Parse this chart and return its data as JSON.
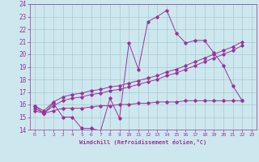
{
  "xlabel": "Windchill (Refroidissement éolien,°C)",
  "background_color": "#cce8ee",
  "grid_color": "#aac8d4",
  "line_color": "#993399",
  "xlim": [
    -0.5,
    23.5
  ],
  "ylim": [
    14,
    24
  ],
  "yticks": [
    14,
    15,
    16,
    17,
    18,
    19,
    20,
    21,
    22,
    23,
    24
  ],
  "xticks": [
    0,
    1,
    2,
    3,
    4,
    5,
    6,
    7,
    8,
    9,
    10,
    11,
    12,
    13,
    14,
    15,
    16,
    17,
    18,
    19,
    20,
    21,
    22,
    23
  ],
  "series1_x": [
    0,
    1,
    2,
    3,
    4,
    5,
    6,
    7,
    8,
    9,
    10,
    11,
    12,
    13,
    14,
    15,
    16,
    17,
    18,
    19,
    20,
    21,
    22
  ],
  "series1_y": [
    15.9,
    15.3,
    16.1,
    15.0,
    15.0,
    14.1,
    14.1,
    13.9,
    16.5,
    14.9,
    20.9,
    18.8,
    22.6,
    23.0,
    23.5,
    21.7,
    20.9,
    21.1,
    21.1,
    20.1,
    19.1,
    17.5,
    16.3
  ],
  "series2_x": [
    0,
    1,
    2,
    3,
    4,
    5,
    6,
    7,
    8,
    9,
    10,
    11,
    12,
    13,
    14,
    15,
    16,
    17,
    18,
    19,
    20,
    21,
    22
  ],
  "series2_y": [
    15.9,
    15.5,
    16.2,
    16.6,
    16.8,
    16.9,
    17.1,
    17.2,
    17.4,
    17.5,
    17.7,
    17.9,
    18.1,
    18.3,
    18.6,
    18.8,
    19.1,
    19.4,
    19.7,
    20.0,
    20.3,
    20.6,
    21.0
  ],
  "series3_x": [
    0,
    1,
    2,
    3,
    4,
    5,
    6,
    7,
    8,
    9,
    10,
    11,
    12,
    13,
    14,
    15,
    16,
    17,
    18,
    19,
    20,
    21,
    22
  ],
  "series3_y": [
    15.7,
    15.3,
    15.9,
    16.3,
    16.5,
    16.6,
    16.8,
    16.9,
    17.1,
    17.2,
    17.4,
    17.6,
    17.8,
    18.0,
    18.3,
    18.5,
    18.8,
    19.1,
    19.4,
    19.7,
    20.0,
    20.3,
    20.7
  ],
  "series4_x": [
    0,
    1,
    2,
    3,
    4,
    5,
    6,
    7,
    8,
    9,
    10,
    11,
    12,
    13,
    14,
    15,
    16,
    17,
    18,
    19,
    20,
    21,
    22
  ],
  "series4_y": [
    15.5,
    15.3,
    15.5,
    15.7,
    15.7,
    15.7,
    15.8,
    15.9,
    15.9,
    16.0,
    16.0,
    16.1,
    16.1,
    16.2,
    16.2,
    16.2,
    16.3,
    16.3,
    16.3,
    16.3,
    16.3,
    16.3,
    16.3
  ]
}
